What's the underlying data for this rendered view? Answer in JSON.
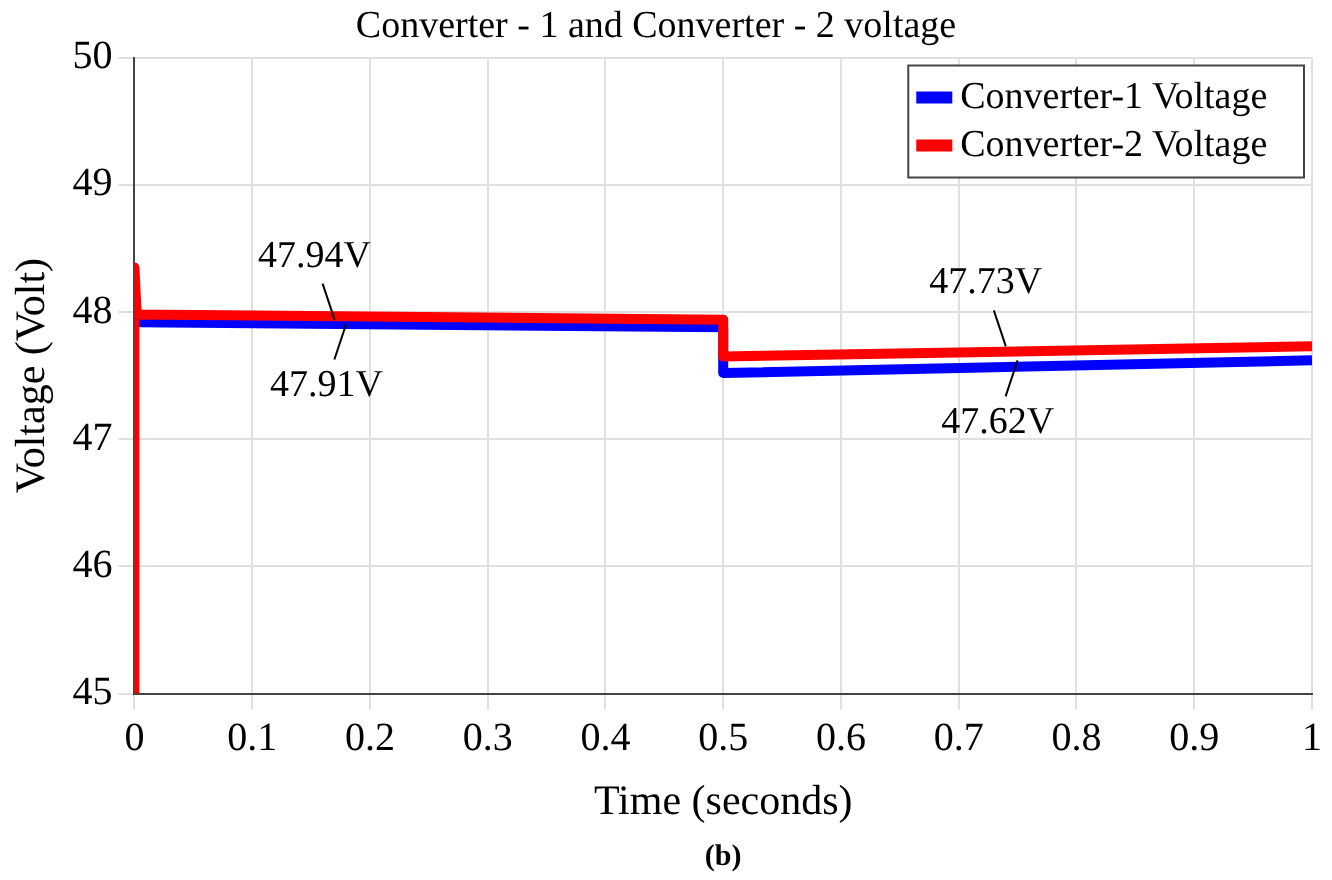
{
  "chart_data": {
    "type": "line",
    "title": "Converter - 1 and Converter - 2 voltage",
    "xlabel": "Time (seconds)",
    "ylabel": "Voltage (Volt)",
    "xlim": [
      0,
      1
    ],
    "xticks": [
      0,
      0.1,
      0.2,
      0.3,
      0.4,
      0.5,
      0.6,
      0.7,
      0.8,
      0.9,
      1
    ],
    "ylim": [
      45,
      50
    ],
    "yticks": [
      45,
      46,
      47,
      48,
      49,
      50
    ],
    "grid": true,
    "legend": "top right",
    "marker": "none",
    "line_style": "solid",
    "series": [
      {
        "name": "Converter-1 Voltage",
        "color": "#0000ff",
        "x": [
          0,
          0.002,
          0.5,
          0.5,
          1
        ],
        "values": [
          47.92,
          47.92,
          47.88,
          47.52,
          47.62
        ]
      },
      {
        "name": "Converter-2 Voltage",
        "color": "#ff0000",
        "x": [
          0,
          0,
          0.002,
          0.5,
          0.5,
          1
        ],
        "values": [
          45,
          48.35,
          47.98,
          47.94,
          47.65,
          47.73
        ]
      }
    ],
    "annotations": [
      {
        "text": "47.94V",
        "x": 0.17,
        "y": 47.94
      },
      {
        "text": "47.91V",
        "x": 0.18,
        "y": 47.91
      },
      {
        "text": "47.73V",
        "x": 0.74,
        "y": 47.73
      },
      {
        "text": "47.62V",
        "x": 0.75,
        "y": 47.62
      },
      "(b)"
    ]
  }
}
